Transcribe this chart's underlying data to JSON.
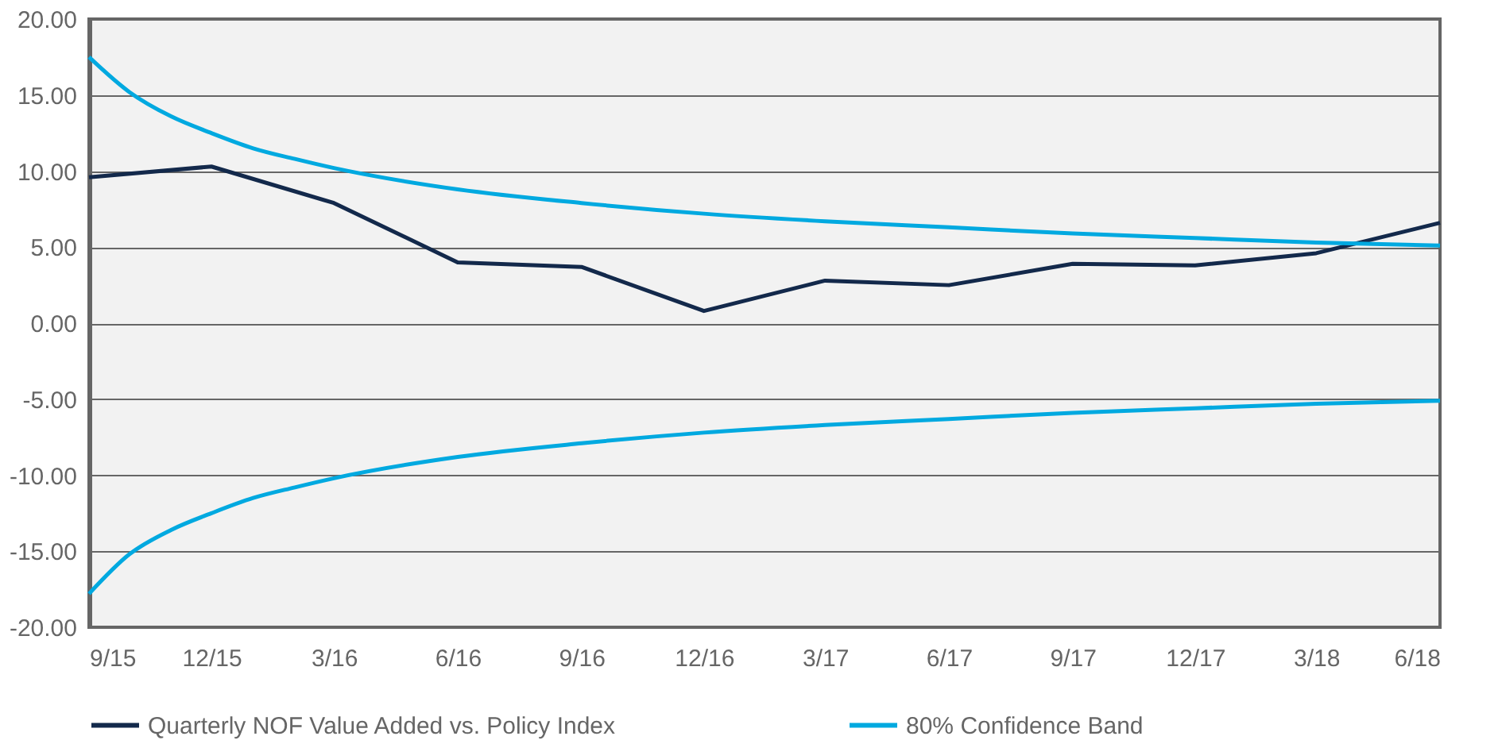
{
  "chart_data": {
    "type": "line",
    "x": [
      "2015-09",
      "2015-12",
      "2016-03",
      "2016-06",
      "2016-09",
      "2016-12",
      "2017-03",
      "2017-06",
      "2017-09",
      "2017-12",
      "2018-03",
      "2018-06"
    ],
    "series": [
      {
        "name": "Quarterly NOF Value Added vs. Policy Index",
        "color": "#13294b",
        "values": [
          9.6,
          10.3,
          7.9,
          4.0,
          3.7,
          0.8,
          2.8,
          2.5,
          3.9,
          3.8,
          4.6,
          6.6
        ]
      },
      {
        "name": "80% Confidence Band",
        "color": "#00a9e0",
        "x": [
          "2015-09",
          "2015-10",
          "2015-11",
          "2015-12",
          "2016-01",
          "2016-02",
          "2016-03",
          "2016-06",
          "2016-09",
          "2016-12",
          "2017-03",
          "2017-06",
          "2017-09",
          "2017-12",
          "2018-03",
          "2018-06"
        ],
        "values": [
          17.5,
          15.2,
          13.6,
          12.5,
          11.5,
          10.8,
          10.2,
          8.8,
          7.9,
          7.2,
          6.7,
          6.3,
          5.9,
          5.6,
          5.3,
          5.1
        ]
      },
      {
        "color": "#00a9e0",
        "x": [
          "2015-09",
          "2015-10",
          "2015-11",
          "2015-12",
          "2016-01",
          "2016-02",
          "2016-03",
          "2016-06",
          "2016-09",
          "2016-12",
          "2017-03",
          "2017-06",
          "2017-09",
          "2017-12",
          "2018-03",
          "2018-06"
        ],
        "values": [
          -17.8,
          -15.2,
          -13.6,
          -12.5,
          -11.5,
          -10.8,
          -10.2,
          -8.8,
          -7.9,
          -7.2,
          -6.7,
          -6.3,
          -5.9,
          -5.6,
          -5.3,
          -5.1
        ]
      }
    ],
    "xlim": [
      "2015-09",
      "2018-06"
    ],
    "xticks": [
      {
        "value": "2015-09",
        "label": "9/15"
      },
      {
        "value": "2015-12",
        "label": "12/15"
      },
      {
        "value": "2016-03",
        "label": "3/16"
      },
      {
        "value": "2016-06",
        "label": "6/16"
      },
      {
        "value": "2016-09",
        "label": "9/16"
      },
      {
        "value": "2016-12",
        "label": "12/16"
      },
      {
        "value": "2017-03",
        "label": "3/17"
      },
      {
        "value": "2017-06",
        "label": "6/17"
      },
      {
        "value": "2017-09",
        "label": "9/17"
      },
      {
        "value": "2017-12",
        "label": "12/17"
      },
      {
        "value": "2018-03",
        "label": "3/18"
      },
      {
        "value": "2018-06",
        "label": "6/18"
      }
    ],
    "ylim": [
      -20,
      20
    ],
    "yticks": [
      {
        "value": -20,
        "label": "-20.00"
      },
      {
        "value": -15,
        "label": "-15.00"
      },
      {
        "value": -10,
        "label": "-10.00"
      },
      {
        "value": -5,
        "label": "-5.00"
      },
      {
        "value": 0,
        "label": "0.00"
      },
      {
        "value": 5,
        "label": "5.00"
      },
      {
        "value": 10,
        "label": "10.00"
      },
      {
        "value": 15,
        "label": "15.00"
      },
      {
        "value": 20,
        "label": "20.00"
      }
    ],
    "grid": "y",
    "legend": "bottom",
    "marker": "none",
    "line_style": "solid"
  }
}
